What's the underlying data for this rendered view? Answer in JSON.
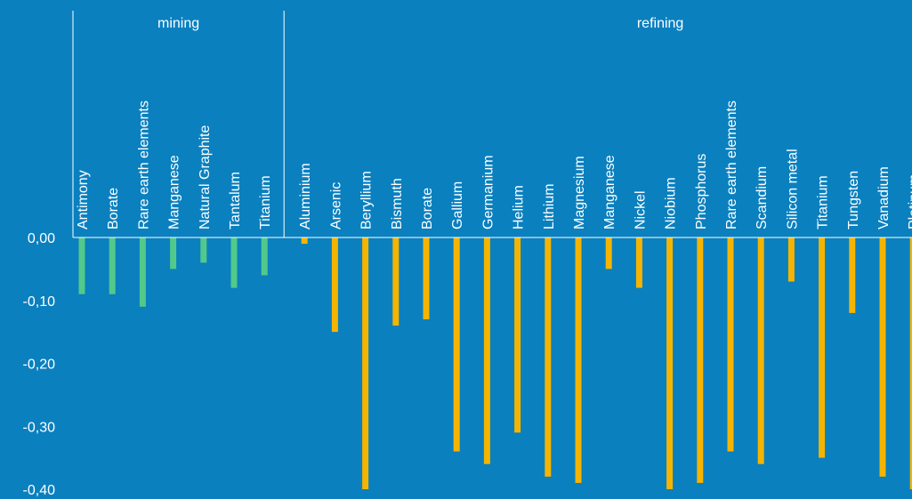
{
  "chart_data": {
    "type": "bar",
    "ylim": [
      -0.4,
      0
    ],
    "yticks": [
      {
        "value": 0,
        "label": "0,00"
      },
      {
        "value": -0.1,
        "label": "-0,10"
      },
      {
        "value": -0.2,
        "label": "-0,20"
      },
      {
        "value": -0.3,
        "label": "-0,30"
      },
      {
        "value": -0.4,
        "label": "-0,40"
      }
    ],
    "groups": [
      {
        "name": "mining",
        "color": "#52c98a",
        "categories": [
          "Antimony",
          "Borate",
          "Rare earth elements",
          "Manganese",
          "Natural Graphite",
          "Tantalum",
          "Titanium"
        ],
        "values": [
          -0.09,
          -0.09,
          -0.11,
          -0.05,
          -0.04,
          -0.08,
          -0.06
        ]
      },
      {
        "name": "refining",
        "color": "#f5b400",
        "categories": [
          "Aluminium",
          "Arsenic",
          "Beryllium",
          "Bismuth",
          "Borate",
          "Gallium",
          "Germanium",
          "Helium",
          "Lithium",
          "Magnesium",
          "Manganese",
          "Nickel",
          "Niobium",
          "Phosphorus",
          "Rare earth elements",
          "Scandium",
          "Silicon metal",
          "Titanium",
          "Tungsten",
          "Vanadium",
          "Platinum"
        ],
        "values": [
          -0.01,
          -0.15,
          -0.4,
          -0.14,
          -0.13,
          -0.34,
          -0.36,
          -0.31,
          -0.38,
          -0.39,
          -0.05,
          -0.08,
          -0.4,
          -0.39,
          -0.34,
          -0.36,
          -0.07,
          -0.35,
          -0.12,
          -0.38,
          -0.4
        ]
      }
    ]
  }
}
